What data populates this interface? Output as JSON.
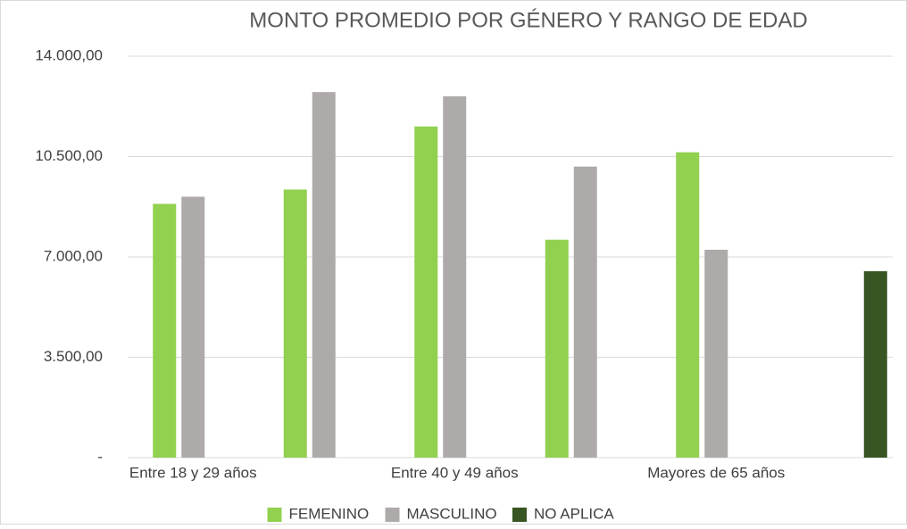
{
  "chart_data": {
    "type": "bar",
    "title": "MONTO PROMEDIO POR GÉNERO Y RANGO DE EDAD",
    "categories": [
      "Entre 18 y 29 años",
      null,
      "Entre 40 y 49 años",
      null,
      "Mayores de 65 años",
      null
    ],
    "series": [
      {
        "name": "FEMENINO",
        "color": "#92d050",
        "values": [
          8850,
          9350,
          11550,
          7600,
          10650,
          null
        ]
      },
      {
        "name": "MASCULINO",
        "color": "#aeaaaa",
        "values": [
          9100,
          12750,
          12600,
          10150,
          7250,
          null
        ]
      },
      {
        "name": "NO APLICA",
        "color": "#375623",
        "values": [
          null,
          null,
          null,
          null,
          null,
          6500
        ]
      }
    ],
    "ylim": [
      0,
      14000
    ],
    "yticks": [
      {
        "value": 0,
        "label": "-"
      },
      {
        "value": 3500,
        "label": "3.500,00"
      },
      {
        "value": 7000,
        "label": "7.000,00"
      },
      {
        "value": 10500,
        "label": "10.500,00"
      },
      {
        "value": 14000,
        "label": "14.000,00"
      }
    ],
    "grid": true,
    "legend": "bottom"
  }
}
